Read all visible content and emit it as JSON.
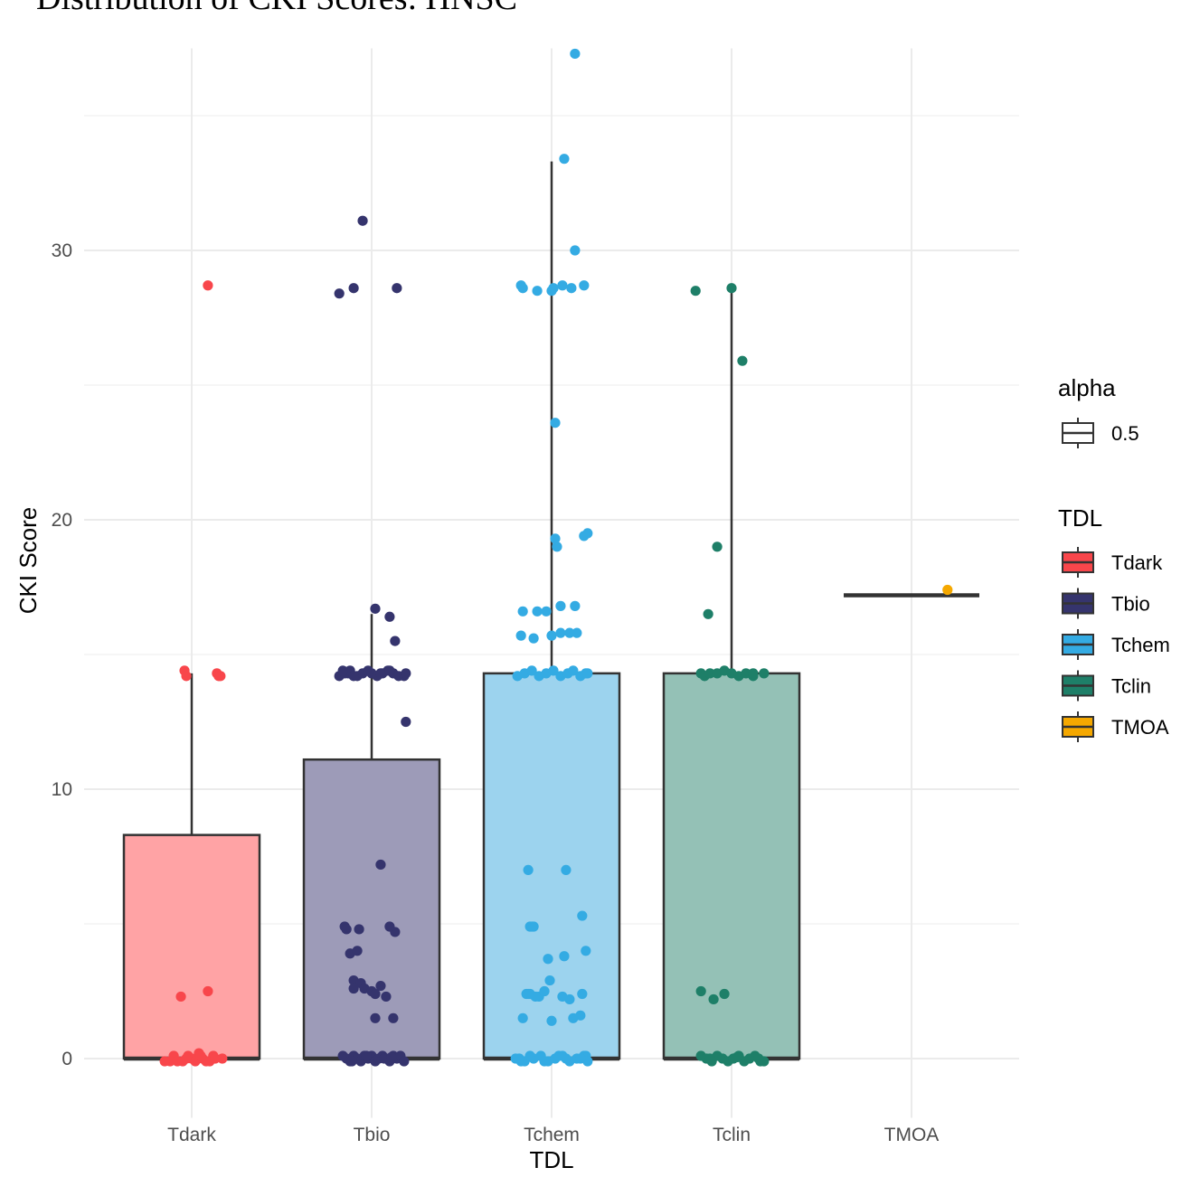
{
  "chart_data": {
    "type": "box",
    "title": "Distribution of CKI Scores: HNSC",
    "xlabel": "TDL",
    "ylabel": "CKI Score",
    "categories": [
      "Tdark",
      "Tbio",
      "Tchem",
      "Tclin",
      "TMOA"
    ],
    "yticks": [
      0,
      10,
      20,
      30
    ],
    "ylim": [
      -2.2,
      37.5
    ],
    "grid": true,
    "legend_position": "right",
    "legends": [
      {
        "title": "alpha",
        "entries": [
          {
            "label": "0.5"
          }
        ]
      },
      {
        "title": "TDL",
        "entries": [
          {
            "label": "Tdark",
            "color": "#F8464B"
          },
          {
            "label": "Tbio",
            "color": "#35346D"
          },
          {
            "label": "Tchem",
            "color": "#34ABE3"
          },
          {
            "label": "Tclin",
            "color": "#1E7F68"
          },
          {
            "label": "TMOA",
            "color": "#F5A800"
          }
        ]
      }
    ],
    "boxes": [
      {
        "category": "Tdark",
        "color": "#F8464B",
        "fill": "#FFA3A5",
        "q1": 0,
        "median": 0,
        "q3": 8.3,
        "whisker_low": 0,
        "whisker_high": 14.3
      },
      {
        "category": "Tbio",
        "color": "#35346D",
        "fill": "#9D9BB8",
        "q1": 0,
        "median": 0,
        "q3": 11.1,
        "whisker_low": 0,
        "whisker_high": 16.5
      },
      {
        "category": "Tchem",
        "color": "#34ABE3",
        "fill": "#9CD3EE",
        "q1": 0,
        "median": 0,
        "q3": 14.3,
        "whisker_low": 0,
        "whisker_high": 33.3
      },
      {
        "category": "Tclin",
        "color": "#1E7F68",
        "fill": "#94C1B6",
        "q1": 0,
        "median": 0,
        "q3": 14.3,
        "whisker_low": 0,
        "whisker_high": 28.5
      },
      {
        "category": "TMOA",
        "color": "#F5A800",
        "fill": "#F9D47F",
        "q1": 17.2,
        "median": 17.2,
        "q3": 17.2,
        "whisker_low": 17.2,
        "whisker_high": 17.2
      }
    ],
    "points": [
      {
        "category": "Tdark",
        "color": "#F8464B",
        "jitter": [
          0.09,
          -0.04,
          -0.03,
          0.14,
          0.15,
          0.16,
          -0.06,
          0.09,
          -0.1,
          -0.12,
          -0.08,
          -0.05,
          -0.02,
          0,
          0.02,
          0.04,
          0.06,
          0.08,
          0.1,
          0.12,
          0.17,
          -0.15,
          -0.03,
          0.05,
          0.13
        ],
        "y": [
          28.7,
          14.4,
          14.2,
          14.3,
          14.2,
          14.2,
          2.3,
          2.5,
          0.1,
          -0.1,
          -0.1,
          -0.1,
          0.1,
          0,
          -0.1,
          0.2,
          0,
          -0.1,
          -0.1,
          0.1,
          0,
          -0.1,
          0,
          0.1,
          0
        ]
      },
      {
        "category": "Tbio",
        "color": "#35346D",
        "jitter": [
          -0.05,
          -0.1,
          -0.18,
          0.14,
          0.13,
          -0.13,
          0.19,
          0.1,
          0.02,
          -0.18,
          -0.15,
          -0.12,
          -0.08,
          -0.05,
          -0.02,
          0,
          0.03,
          0.06,
          0.09,
          0.12,
          0.15,
          0.18,
          -0.16,
          -0.1,
          0.05,
          0.1,
          0.19,
          -0.15,
          -0.14,
          -0.12,
          -0.1,
          -0.06,
          -0.04,
          0,
          0.02,
          0.05,
          0.08,
          0.12,
          0.13,
          -0.07,
          0.1,
          -0.08,
          -0.1,
          0.02,
          0.05,
          -0.16,
          -0.14,
          -0.12,
          -0.1,
          -0.08,
          -0.06,
          -0.04,
          -0.02,
          0,
          0.02,
          0.04,
          0.06,
          0.08,
          0.1,
          0.12,
          0.14,
          0.16,
          0.18,
          -0.03,
          0.07,
          -0.11,
          0.11
        ],
        "y": [
          31.1,
          28.6,
          28.4,
          28.6,
          15.5,
          14.3,
          12.5,
          16.4,
          16.7,
          14.2,
          14.3,
          14.4,
          14.2,
          14.3,
          14.4,
          14.3,
          14.2,
          14.3,
          14.4,
          14.3,
          14.2,
          14.2,
          14.4,
          14.2,
          14.3,
          14.4,
          14.3,
          4.9,
          4.8,
          3.9,
          2.9,
          2.8,
          2.6,
          2.5,
          2.4,
          2.7,
          2.3,
          1.5,
          4.7,
          4.8,
          4.9,
          4.0,
          2.6,
          1.5,
          7.2,
          0.1,
          0,
          -0.1,
          0.1,
          0,
          -0.1,
          0.1,
          0,
          0.1,
          -0.1,
          0,
          0.1,
          0,
          -0.1,
          0.1,
          0,
          0.1,
          -0.1,
          0.1,
          0,
          -0.1,
          0.05
        ]
      },
      {
        "category": "Tchem",
        "color": "#34ABE3",
        "jitter": [
          0.13,
          0.07,
          0.13,
          0.06,
          0.18,
          -0.17,
          -0.16,
          -0.08,
          0,
          0.01,
          0.11,
          0.02,
          0.2,
          0.18,
          0.02,
          0.03,
          0.05,
          -0.16,
          -0.08,
          -0.03,
          0.13,
          0.1,
          -0.17,
          -0.1,
          0,
          0.05,
          0.14,
          0.19,
          -0.19,
          -0.15,
          -0.11,
          -0.07,
          -0.03,
          0.01,
          0.05,
          0.09,
          0.12,
          0.16,
          0.2,
          -0.13,
          0.08,
          -0.12,
          -0.11,
          -0.02,
          -0.1,
          0.17,
          0.07,
          0.19,
          -0.14,
          -0.13,
          -0.12,
          -0.07,
          -0.09,
          -0.04,
          0.06,
          0.1,
          0.12,
          0.16,
          0.17,
          -0.16,
          0,
          0.19,
          -0.17,
          -0.2,
          -0.15,
          -0.1,
          -0.06,
          -0.02,
          0.02,
          0.06,
          0.1,
          0.14,
          0.18,
          0.2,
          -0.18,
          -0.12,
          -0.04,
          0.04,
          0.08,
          0.16,
          -0.01
        ],
        "y": [
          37.3,
          33.4,
          30.0,
          28.7,
          28.7,
          28.7,
          28.6,
          28.5,
          28.5,
          28.6,
          28.6,
          23.6,
          19.5,
          19.4,
          19.3,
          19.0,
          16.8,
          16.6,
          16.6,
          16.6,
          16.8,
          15.8,
          15.7,
          15.6,
          15.7,
          15.8,
          15.8,
          14.3,
          14.2,
          14.3,
          14.4,
          14.2,
          14.3,
          14.4,
          14.2,
          14.3,
          14.4,
          14.2,
          14.3,
          7.0,
          7.0,
          4.9,
          4.9,
          3.7,
          4.9,
          5.3,
          3.8,
          4.0,
          2.4,
          2.4,
          2.4,
          2.3,
          2.3,
          2.5,
          2.3,
          2.2,
          1.5,
          1.6,
          2.4,
          1.5,
          1.4,
          0.1,
          -0.1,
          0,
          -0.1,
          0,
          0.1,
          -0.1,
          0,
          0.1,
          -0.1,
          0,
          0.1,
          -0.1,
          0,
          0.1,
          -0.1,
          0.1,
          0,
          0,
          2.9
        ]
      },
      {
        "category": "Tclin",
        "color": "#1E7F68",
        "jitter": [
          -0.2,
          0,
          0.06,
          -0.08,
          -0.13,
          -0.17,
          -0.15,
          -0.12,
          -0.08,
          -0.04,
          0,
          0.04,
          0.08,
          0.12,
          0.18,
          0.12,
          -0.17,
          -0.1,
          -0.04,
          -0.17,
          -0.14,
          -0.11,
          -0.08,
          -0.05,
          -0.02,
          0.01,
          0.04,
          0.07,
          0.1,
          0.13,
          0.16,
          0.18,
          -0.12,
          0.03,
          0.15
        ],
        "y": [
          28.5,
          28.6,
          25.9,
          19.0,
          16.5,
          14.3,
          14.2,
          14.3,
          14.3,
          14.4,
          14.3,
          14.2,
          14.3,
          14.2,
          14.3,
          14.3,
          2.5,
          2.2,
          2.4,
          0.1,
          0,
          -0.1,
          0.1,
          0,
          -0.1,
          0,
          0.1,
          -0.1,
          0,
          0.1,
          -0.1,
          -0.1,
          0,
          0.05,
          0
        ]
      },
      {
        "category": "TMOA",
        "color": "#F5A800",
        "jitter": [
          0.2
        ],
        "y": [
          17.4
        ]
      }
    ]
  }
}
